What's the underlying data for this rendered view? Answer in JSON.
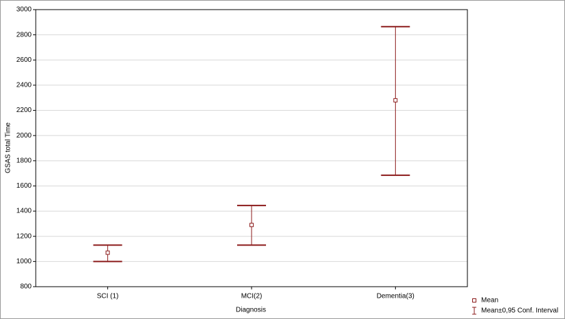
{
  "chart_data": {
    "type": "errorbar",
    "x_label": "Diagnosis",
    "y_label": "GSAS total Time",
    "categories": [
      "SCI (1)",
      "MCI(2)",
      "Dementia(3)"
    ],
    "series": [
      {
        "name": "Mean",
        "color": "#8b1a1a",
        "values": [
          1070,
          1290,
          2280
        ]
      }
    ],
    "interval": {
      "name": "Mean±0,95 Conf. Interval",
      "lower": [
        1000,
        1130,
        1685
      ],
      "upper": [
        1130,
        1445,
        2865
      ]
    },
    "ylim": [
      800,
      3000
    ],
    "yticks": [
      800,
      1000,
      1200,
      1400,
      1600,
      1800,
      2000,
      2200,
      2400,
      2600,
      2800,
      3000
    ],
    "grid": true,
    "legend": "bottom-right"
  }
}
